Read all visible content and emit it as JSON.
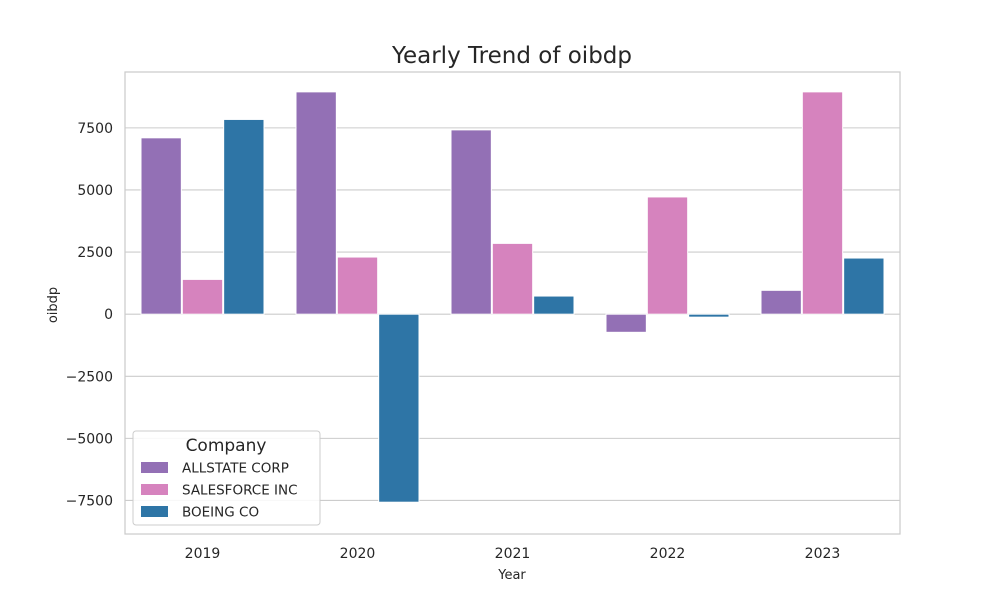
{
  "chart_data": {
    "type": "bar",
    "title": "Yearly Trend of oibdp",
    "xlabel": "Year",
    "ylabel": "oibdp",
    "categories": [
      "2019",
      "2020",
      "2021",
      "2022",
      "2023"
    ],
    "series": [
      {
        "name": "ALLSTATE CORP",
        "color": "#9370b5",
        "values": [
          7100,
          8950,
          7420,
          -730,
          960
        ]
      },
      {
        "name": "SALESFORCE INC",
        "color": "#d683be",
        "values": [
          1400,
          2300,
          2850,
          4720,
          8950
        ]
      },
      {
        "name": "BOEING CO",
        "color": "#2e75a6",
        "values": [
          7840,
          -7570,
          730,
          -120,
          2260
        ]
      }
    ],
    "ylim": [
      -8850,
      9750
    ],
    "yticks": [
      -7500,
      -5000,
      -2500,
      0,
      2500,
      5000,
      7500
    ],
    "ytick_labels": [
      "−7500",
      "−5000",
      "−2500",
      "0",
      "2500",
      "5000",
      "7500"
    ],
    "grid": true,
    "legend": {
      "title": "Company",
      "position": "lower-left"
    }
  }
}
